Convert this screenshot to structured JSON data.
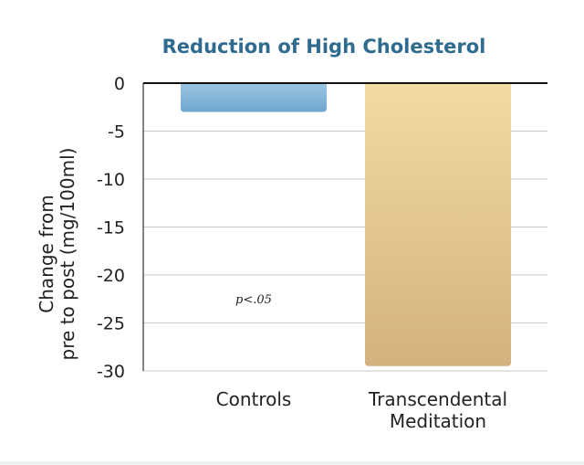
{
  "chart_data": {
    "type": "bar",
    "title": "Reduction of High Cholesterol",
    "ylabel_lines": [
      "Change from",
      "pre to post (mg/100ml)"
    ],
    "xlabel": "",
    "categories": [
      [
        "Controls"
      ],
      [
        "Transcendental",
        "Meditation"
      ]
    ],
    "values": [
      -3,
      -29.5
    ],
    "ylim": [
      -30,
      0
    ],
    "yticks": [
      0,
      -5,
      -10,
      -15,
      -20,
      -25,
      -30
    ],
    "grid": true,
    "annotation": "p<.05",
    "colors": {
      "controls_top": "#9cc6e4",
      "controls_bottom": "#6ea6cf",
      "tm_top": "#f2dba2",
      "tm_bottom": "#d4b27f",
      "title": "#2f6a8f"
    }
  }
}
